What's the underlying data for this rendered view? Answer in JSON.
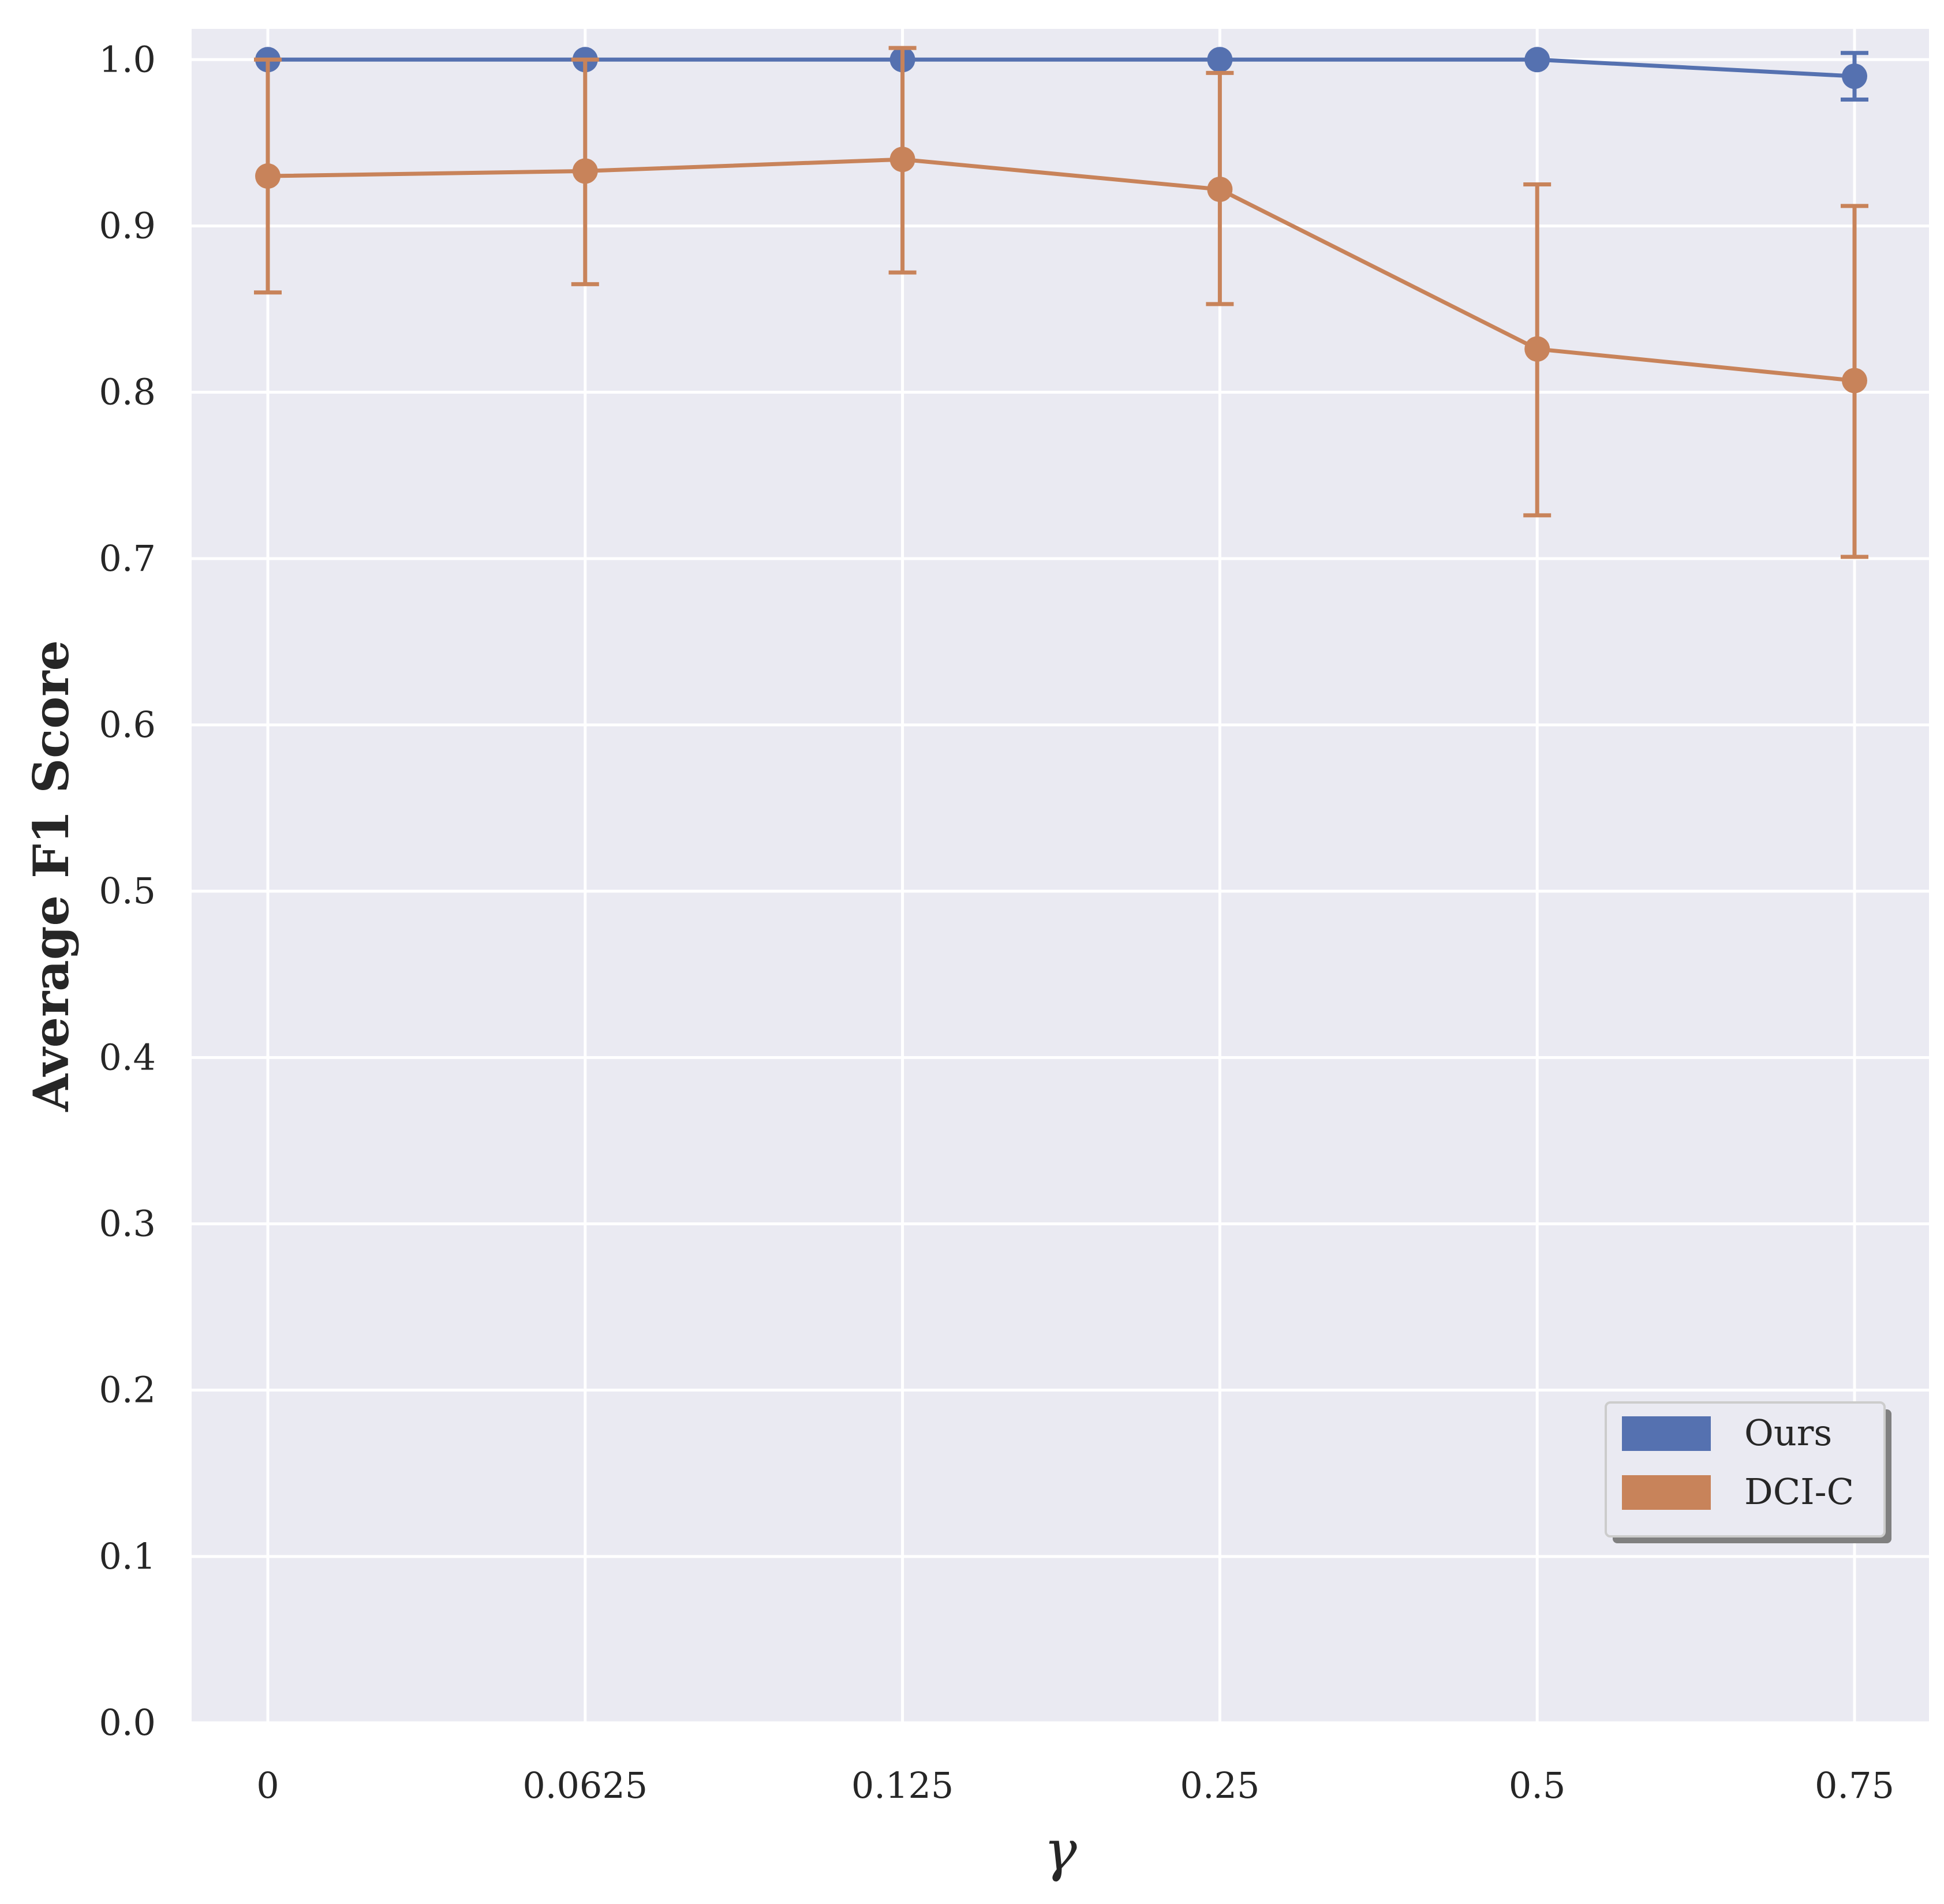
{
  "chart_data": {
    "type": "line",
    "title": "",
    "xlabel": "γ",
    "ylabel": "Average F1 Score",
    "categories": [
      "0",
      "0.0625",
      "0.125",
      "0.25",
      "0.5",
      "0.75"
    ],
    "ylim": [
      0.0,
      1.0
    ],
    "yticks": [
      "0.0",
      "0.1",
      "0.2",
      "0.3",
      "0.4",
      "0.5",
      "0.6",
      "0.7",
      "0.8",
      "0.9",
      "1.0"
    ],
    "grid": true,
    "legend_position": "bottom-right",
    "series": [
      {
        "name": "Ours",
        "color": "#5571b0",
        "values": [
          1.0,
          1.0,
          1.0,
          1.0,
          1.0,
          0.99
        ],
        "error_low": [
          1.0,
          1.0,
          1.0,
          1.0,
          1.0,
          0.976
        ],
        "error_high": [
          1.0,
          1.0,
          1.0,
          1.0,
          1.0,
          1.004
        ]
      },
      {
        "name": "DCI-C",
        "color": "#c8835a",
        "values": [
          0.93,
          0.933,
          0.94,
          0.922,
          0.826,
          0.807
        ],
        "error_low": [
          0.86,
          0.865,
          0.872,
          0.853,
          0.726,
          0.701
        ],
        "error_high": [
          1.0,
          1.0,
          1.007,
          0.992,
          0.925,
          0.912
        ]
      }
    ]
  }
}
